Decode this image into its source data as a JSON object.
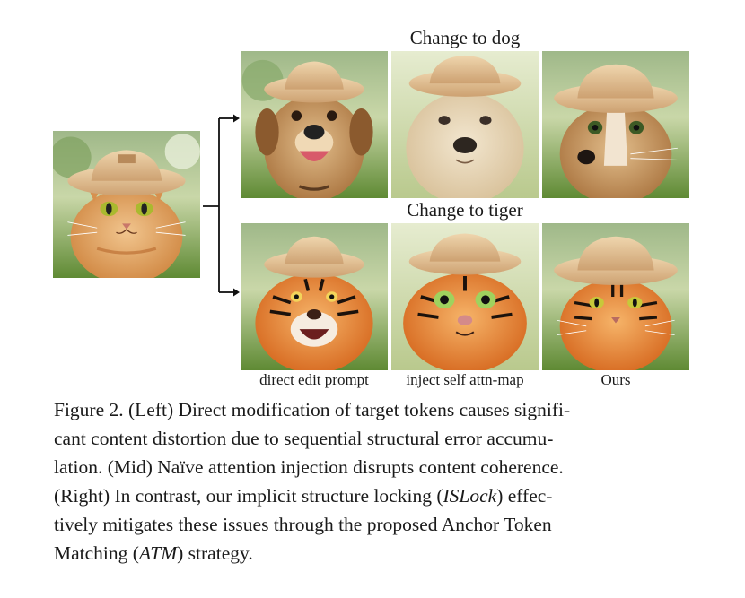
{
  "figure": {
    "row_titles": [
      "Change to dog",
      "Change to tiger"
    ],
    "column_labels": [
      "direct edit prompt",
      "inject self attn-map",
      "Ours"
    ],
    "source_image": {
      "subject": "cat wearing a bucket hat",
      "icon": "cat-photo"
    },
    "results": [
      {
        "row": "dog",
        "images": [
          "dog-direct-edit-photo",
          "dog-inject-attn-photo",
          "dog-ours-photo"
        ]
      },
      {
        "row": "tiger",
        "images": [
          "tiger-direct-edit-photo",
          "tiger-inject-attn-photo",
          "tiger-ours-photo"
        ]
      }
    ],
    "colors": {
      "hat": "#e2c49a",
      "cat_fur": "#d98f4e",
      "dog_fur": "#c99a62",
      "tiger_fur": "#e07a2a",
      "grass": "#6f9a3e"
    }
  },
  "caption": {
    "seg1": "Figure 2. (Left) Direct modification of target tokens causes signifi-",
    "seg2": "cant content distortion due to sequential structural error accumu-",
    "seg3": "lation. (Mid) Naïve attention injection disrupts content coherence.",
    "seg4a": "(Right) In contrast, our implicit structure locking (",
    "seg4b": "ISLock",
    "seg4c": ") effec-",
    "seg5": "tively mitigates these issues through the proposed Anchor Token",
    "seg6a": "Matching (",
    "seg6b": "ATM",
    "seg6c": ") strategy."
  }
}
